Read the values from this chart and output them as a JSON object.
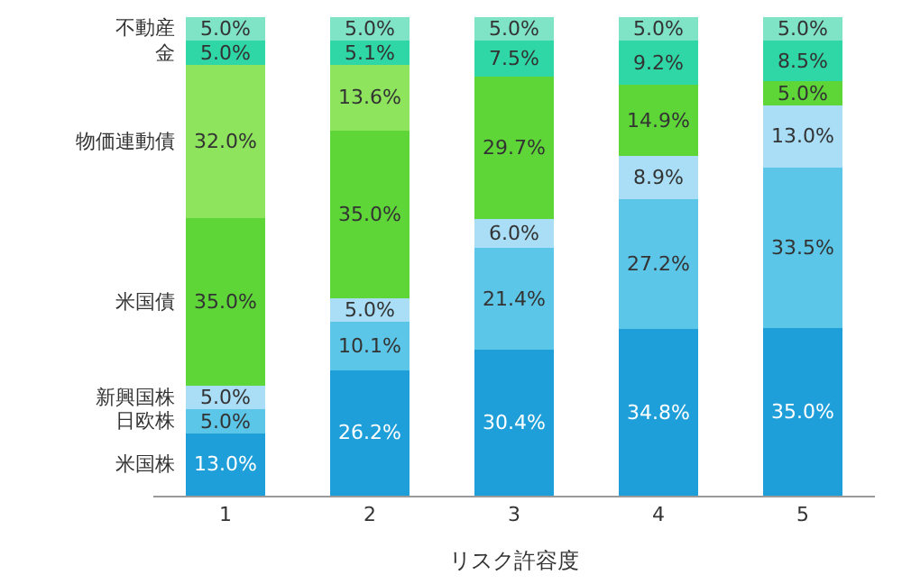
{
  "chart_data": {
    "type": "bar",
    "stacked": true,
    "xlabel": "リスク許容度",
    "categories": [
      "1",
      "2",
      "3",
      "4",
      "5"
    ],
    "tick_labels": "x",
    "legend": false,
    "series": [
      {
        "name": "米国株",
        "color": "#1e9fd9",
        "values": [
          13.0,
          26.2,
          30.4,
          34.8,
          35.0
        ],
        "value_labels": [
          "13.0%",
          "26.2%",
          "30.4%",
          "34.8%",
          "35.0%"
        ]
      },
      {
        "name": "日欧株",
        "color": "#5cc6e8",
        "values": [
          5.0,
          10.1,
          21.4,
          27.2,
          33.5
        ],
        "value_labels": [
          "5.0%",
          "10.1%",
          "21.4%",
          "27.2%",
          "33.5%"
        ]
      },
      {
        "name": "新興国株",
        "color": "#a9def6",
        "values": [
          5.0,
          5.0,
          6.0,
          8.9,
          13.0
        ],
        "value_labels": [
          "5.0%",
          "5.0%",
          "6.0%",
          "8.9%",
          "13.0%"
        ]
      },
      {
        "name": "米国債",
        "color": "#5ed638",
        "values": [
          35.0,
          35.0,
          29.7,
          14.9,
          5.0
        ],
        "value_labels": [
          "35.0%",
          "35.0%",
          "29.7%",
          "14.9%",
          "5.0%"
        ]
      },
      {
        "name": "物価連動債",
        "color": "#8ee45c",
        "values": [
          32.0,
          13.6,
          null,
          null,
          null
        ],
        "value_labels": [
          "32.0%",
          "13.6%",
          null,
          null,
          null
        ]
      },
      {
        "name": "金",
        "color": "#2fd6a6",
        "values": [
          5.0,
          5.1,
          7.5,
          9.2,
          8.5
        ],
        "value_labels": [
          "5.0%",
          "5.1%",
          "7.5%",
          "9.2%",
          "8.5%"
        ]
      },
      {
        "name": "不動産",
        "color": "#7fe3c6",
        "values": [
          5.0,
          5.0,
          5.0,
          5.0,
          5.0
        ],
        "value_labels": [
          "5.0%",
          "5.0%",
          "5.0%",
          "5.0%",
          "5.0%"
        ]
      }
    ]
  }
}
